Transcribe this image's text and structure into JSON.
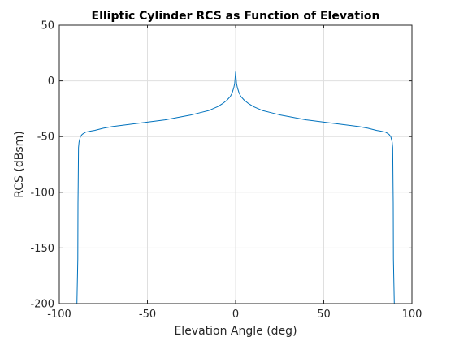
{
  "chart_data": {
    "type": "line",
    "title": "Elliptic Cylinder RCS as Function of Elevation",
    "xlabel": "Elevation Angle (deg)",
    "ylabel": "RCS (dBsm)",
    "xlim": [
      -100,
      100
    ],
    "ylim": [
      -200,
      50
    ],
    "xticks": [
      -100,
      -50,
      0,
      50,
      100
    ],
    "yticks": [
      -200,
      -150,
      -100,
      -50,
      0,
      50
    ],
    "grid": true,
    "series": [
      {
        "color": "#0072BD",
        "x": [
          -90,
          -89.5,
          -89.4,
          -89.3,
          -89.1,
          -88.8,
          -88,
          -87,
          -85,
          -82,
          -80,
          -75,
          -70,
          -60,
          -50,
          -40,
          -30,
          -25,
          -20,
          -15,
          -10,
          -7,
          -5,
          -3,
          -2,
          -1,
          -0.5,
          0,
          0.5,
          1,
          2,
          3,
          5,
          7,
          10,
          15,
          20,
          25,
          30,
          40,
          50,
          60,
          70,
          75,
          80,
          82,
          85,
          87,
          88,
          88.8,
          89.1,
          89.3,
          89.4,
          89.5,
          90
        ],
        "y": [
          -200,
          -160,
          -110,
          -95,
          -60,
          -55,
          -50,
          -48,
          -46,
          -45,
          -44.5,
          -42.5,
          -41,
          -39,
          -37,
          -35,
          -32,
          -30.5,
          -28.5,
          -26.5,
          -23,
          -20,
          -17.5,
          -14,
          -11,
          -6,
          -2,
          8,
          -2,
          -6,
          -11,
          -14,
          -17.5,
          -20,
          -23,
          -26.5,
          -28.5,
          -30.5,
          -32,
          -35,
          -37,
          -39,
          -41,
          -42.5,
          -44.5,
          -45,
          -46,
          -48,
          -50,
          -55,
          -60,
          -95,
          -110,
          -160,
          -200
        ]
      }
    ]
  }
}
